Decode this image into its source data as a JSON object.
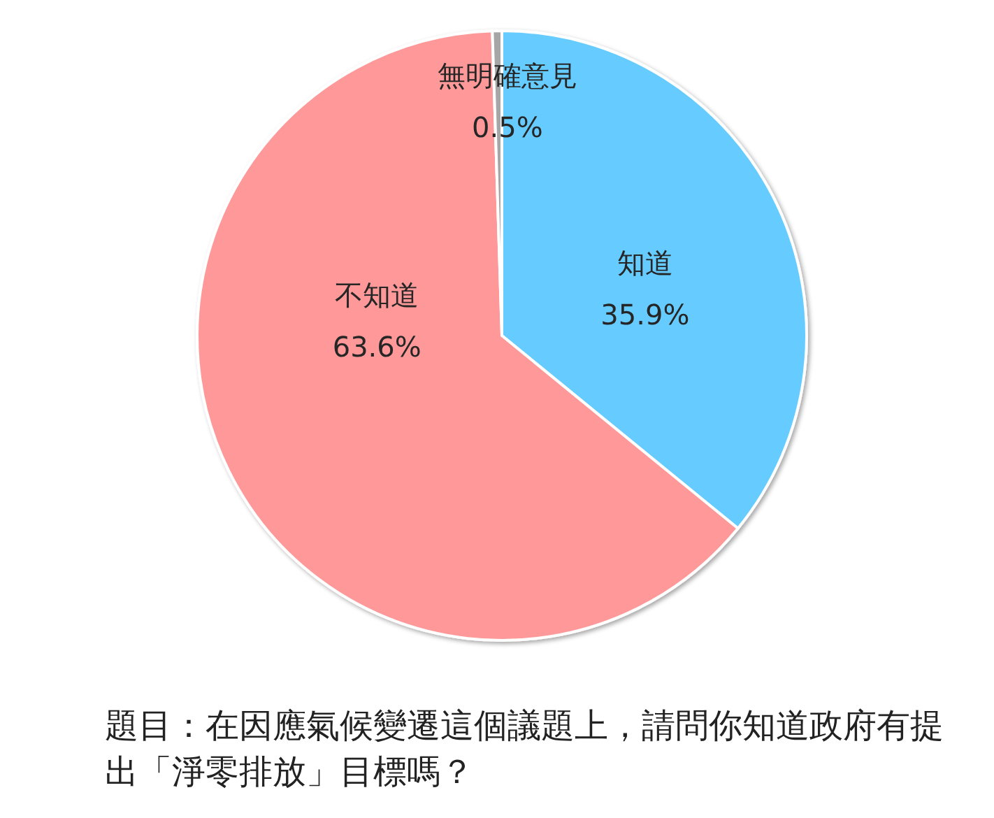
{
  "chart_data": {
    "type": "pie",
    "categories": [
      "知道",
      "不知道",
      "無明確意見"
    ],
    "values": [
      35.9,
      63.6,
      0.5
    ],
    "colors": [
      "#66ccff",
      "#ff9999",
      "#a6a6a6"
    ],
    "value_labels": [
      "35.9%",
      "63.6%",
      "0.5%"
    ],
    "annotations": [
      "題目：在因應氣候變遷這個議題上，請問你知道政府有提出「淨零排放」目標嗎？"
    ]
  }
}
